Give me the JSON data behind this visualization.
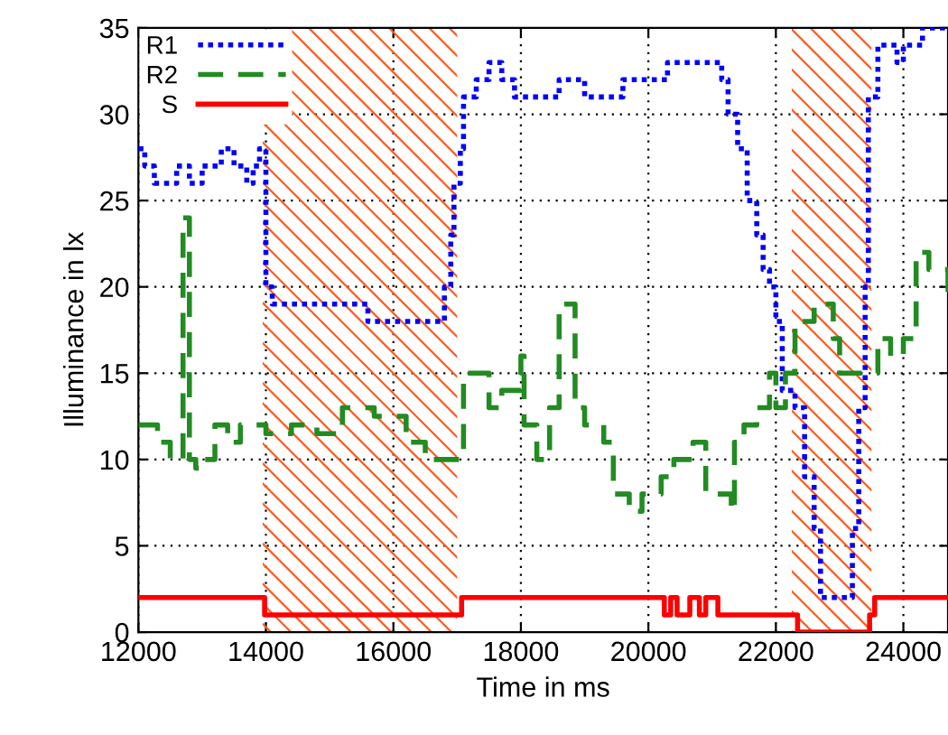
{
  "chart_data": {
    "type": "step",
    "xlabel": "Time in ms",
    "ylabel": "Illuminance in lx",
    "xlim": [
      12000,
      24700
    ],
    "ylim": [
      0,
      35
    ],
    "xticks": [
      12000,
      14000,
      16000,
      18000,
      20000,
      22000,
      24000
    ],
    "yticks": [
      0,
      5,
      10,
      15,
      20,
      25,
      30,
      35
    ],
    "grid": true,
    "legend": "top left",
    "bands": [
      {
        "axis": "x",
        "from": 13950,
        "to": 17000,
        "color": "#ff5a1f"
      },
      {
        "axis": "x",
        "from": 22250,
        "to": 23500,
        "color": "#ff5a1f"
      }
    ],
    "series": [
      {
        "name": "R1",
        "color": "#0000ff",
        "line_style": "dotted",
        "x": [
          12000,
          12100,
          12250,
          12600,
          12800,
          13000,
          13300,
          13500,
          13700,
          13800,
          13900,
          14000,
          14100,
          15600,
          16700,
          16800,
          16900,
          16950,
          17050,
          17100,
          17300,
          17500,
          17700,
          17900,
          18300,
          18600,
          19000,
          19300,
          19600,
          20000,
          20300,
          20600,
          21000,
          21150,
          21250,
          21400,
          21550,
          21700,
          21800,
          21900,
          22000,
          22100,
          22300,
          22450,
          22600,
          22700,
          23200,
          23300,
          23400,
          23450,
          23600,
          23900,
          24000,
          24300,
          24700
        ],
        "values": [
          28,
          27,
          26,
          27,
          26,
          27,
          28,
          27,
          26,
          27,
          28,
          20,
          19,
          18,
          18,
          20,
          23,
          26,
          28,
          31,
          32,
          33,
          32,
          31,
          31,
          32,
          31,
          31,
          32,
          32,
          33,
          33,
          33,
          32,
          30,
          28,
          25,
          23,
          21,
          20,
          18,
          14,
          13,
          9,
          6,
          2,
          6,
          13,
          20,
          31,
          34,
          33,
          34,
          35,
          35
        ]
      },
      {
        "name": "R2",
        "color": "#228b22",
        "line_style": "dashed",
        "x": [
          12000,
          12300,
          12500,
          12700,
          12800,
          12900,
          13000,
          13200,
          13400,
          13600,
          14000,
          14400,
          14800,
          15200,
          15700,
          16200,
          16500,
          17100,
          17300,
          17500,
          17700,
          18000,
          18050,
          18250,
          18450,
          18600,
          18850,
          19000,
          19300,
          19450,
          19700,
          19900,
          20200,
          20400,
          20700,
          20900,
          21300,
          21350,
          21500,
          21700,
          21900,
          22000,
          22150,
          22300,
          22600,
          22900,
          23000,
          23500,
          23600,
          23800,
          24000,
          24200,
          24400,
          24700
        ],
        "values": [
          12,
          11,
          10,
          24,
          10,
          9.5,
          10,
          12,
          11,
          12,
          11.5,
          12,
          11.5,
          13,
          12.5,
          11,
          10,
          15,
          15,
          13,
          14,
          16,
          12,
          10,
          13,
          19,
          13,
          12,
          11,
          8,
          7,
          8,
          9,
          10,
          11,
          8,
          7,
          11,
          12,
          13,
          15,
          13,
          15,
          18,
          19,
          17,
          15,
          15,
          17,
          16,
          17,
          22,
          21,
          19
        ]
      },
      {
        "name": "S",
        "color": "#ff0000",
        "line_style": "solid",
        "x": [
          12000,
          13980,
          17070,
          20250,
          20350,
          20450,
          20650,
          20800,
          20900,
          21090,
          22340,
          23470,
          23550,
          24700
        ],
        "values": [
          2,
          1,
          2,
          1,
          2,
          1,
          2,
          1,
          2,
          1,
          0,
          1,
          2,
          2
        ]
      }
    ]
  }
}
